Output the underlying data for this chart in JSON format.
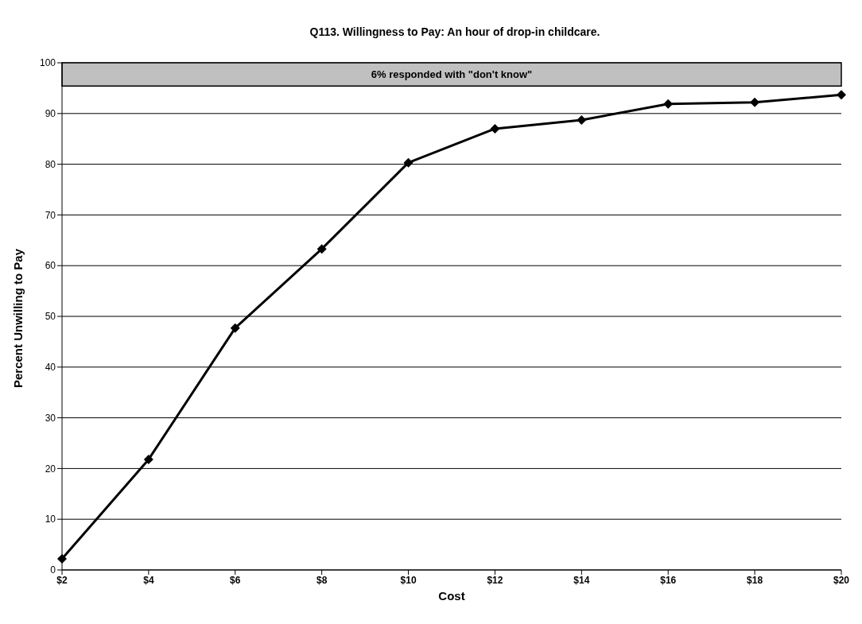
{
  "chart_data": {
    "type": "line",
    "title": "Q113.  Willingness to Pay:  An hour of drop-in childcare.",
    "xlabel": "Cost",
    "ylabel": "Percent Unwilling to Pay",
    "categories": [
      "$2",
      "$4",
      "$6",
      "$8",
      "$10",
      "$12",
      "$14",
      "$16",
      "$18",
      "$20"
    ],
    "series": [
      {
        "color": "#000000",
        "values": [
          2.2,
          21.8,
          47.7,
          63.3,
          80.3,
          87.0,
          88.7,
          91.9,
          92.2,
          93.7
        ]
      }
    ],
    "ylim": [
      0,
      100
    ],
    "yticks": [
      0,
      10,
      20,
      30,
      40,
      50,
      60,
      70,
      80,
      90,
      100
    ],
    "grid": "y",
    "marker": "diamond",
    "line_style": "solid",
    "bands": [
      {
        "axis": "y",
        "from": 95.4,
        "to": 100,
        "label": "6% responded with \"don't know\"",
        "color": "#c0c0c0"
      }
    ]
  }
}
